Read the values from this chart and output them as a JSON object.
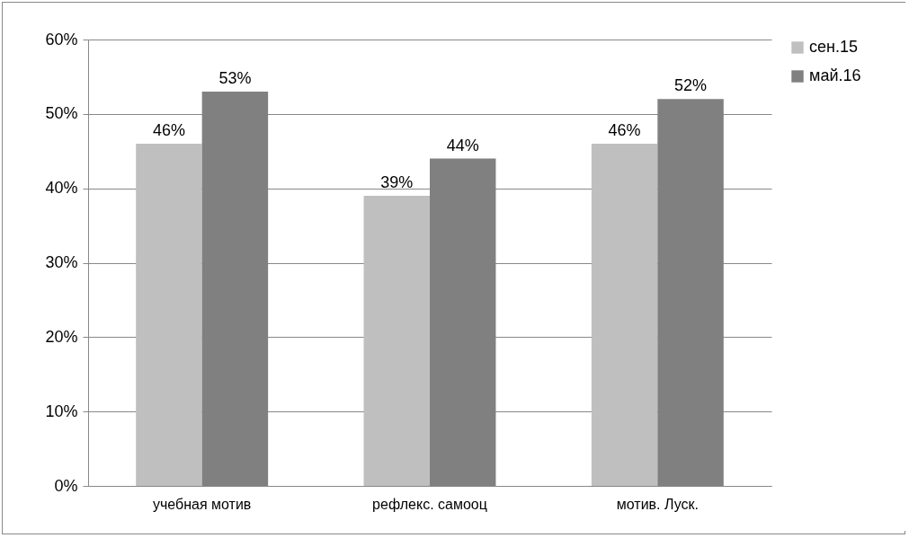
{
  "chart_data": {
    "type": "bar",
    "categories": [
      "учебная мотив",
      "рефлекс. самооц",
      "мотив. Луск."
    ],
    "series": [
      {
        "name": "сен.15",
        "color": "#bfbfbf",
        "values": [
          46,
          39,
          46
        ],
        "value_labels": [
          "46%",
          "39%",
          "46%"
        ]
      },
      {
        "name": "май.16",
        "color": "#808080",
        "values": [
          53,
          44,
          52
        ],
        "value_labels": [
          "53%",
          "44%",
          "52%"
        ]
      }
    ],
    "ylim": [
      0,
      60
    ],
    "yticks": [
      {
        "value": 0,
        "label": "0%"
      },
      {
        "value": 10,
        "label": "10%"
      },
      {
        "value": 20,
        "label": "20%"
      },
      {
        "value": 30,
        "label": "30%"
      },
      {
        "value": 40,
        "label": "40%"
      },
      {
        "value": 50,
        "label": "50%"
      },
      {
        "value": 60,
        "label": "60%"
      }
    ],
    "grid": "y",
    "legend": "right"
  }
}
